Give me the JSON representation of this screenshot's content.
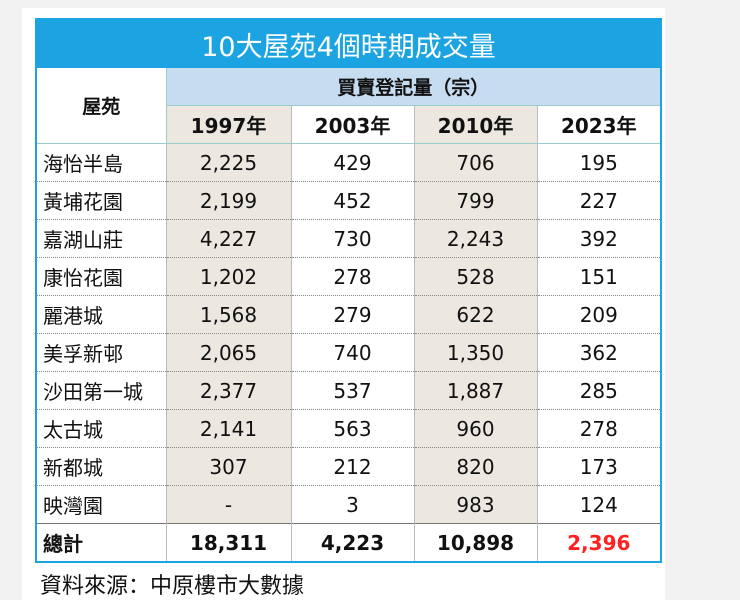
{
  "table": {
    "title": "10大屋苑4個時期成交量",
    "header": {
      "estate": "屋苑",
      "group": "買賣登記量（宗）",
      "years": [
        "1997年",
        "2003年",
        "2010年",
        "2023年"
      ]
    },
    "rows": [
      [
        "海怡半島",
        "2,225",
        "429",
        "706",
        "195"
      ],
      [
        "黃埔花園",
        "2,199",
        "452",
        "799",
        "227"
      ],
      [
        "嘉湖山莊",
        "4,227",
        "730",
        "2,243",
        "392"
      ],
      [
        "康怡花園",
        "1,202",
        "278",
        "528",
        "151"
      ],
      [
        "麗港城",
        "1,568",
        "279",
        "622",
        "209"
      ],
      [
        "美孚新邨",
        "2,065",
        "740",
        "1,350",
        "362"
      ],
      [
        "沙田第一城",
        "2,377",
        "537",
        "1,887",
        "285"
      ],
      [
        "太古城",
        "2,141",
        "563",
        "960",
        "278"
      ],
      [
        "新都城",
        "307",
        "212",
        "820",
        "173"
      ],
      [
        "映灣園",
        "-",
        "3",
        "983",
        "124"
      ]
    ],
    "total": [
      "總計",
      "18,311",
      "4,223",
      "10,898",
      "2,396"
    ],
    "source": "資料來源：中原樓市大數據"
  }
}
